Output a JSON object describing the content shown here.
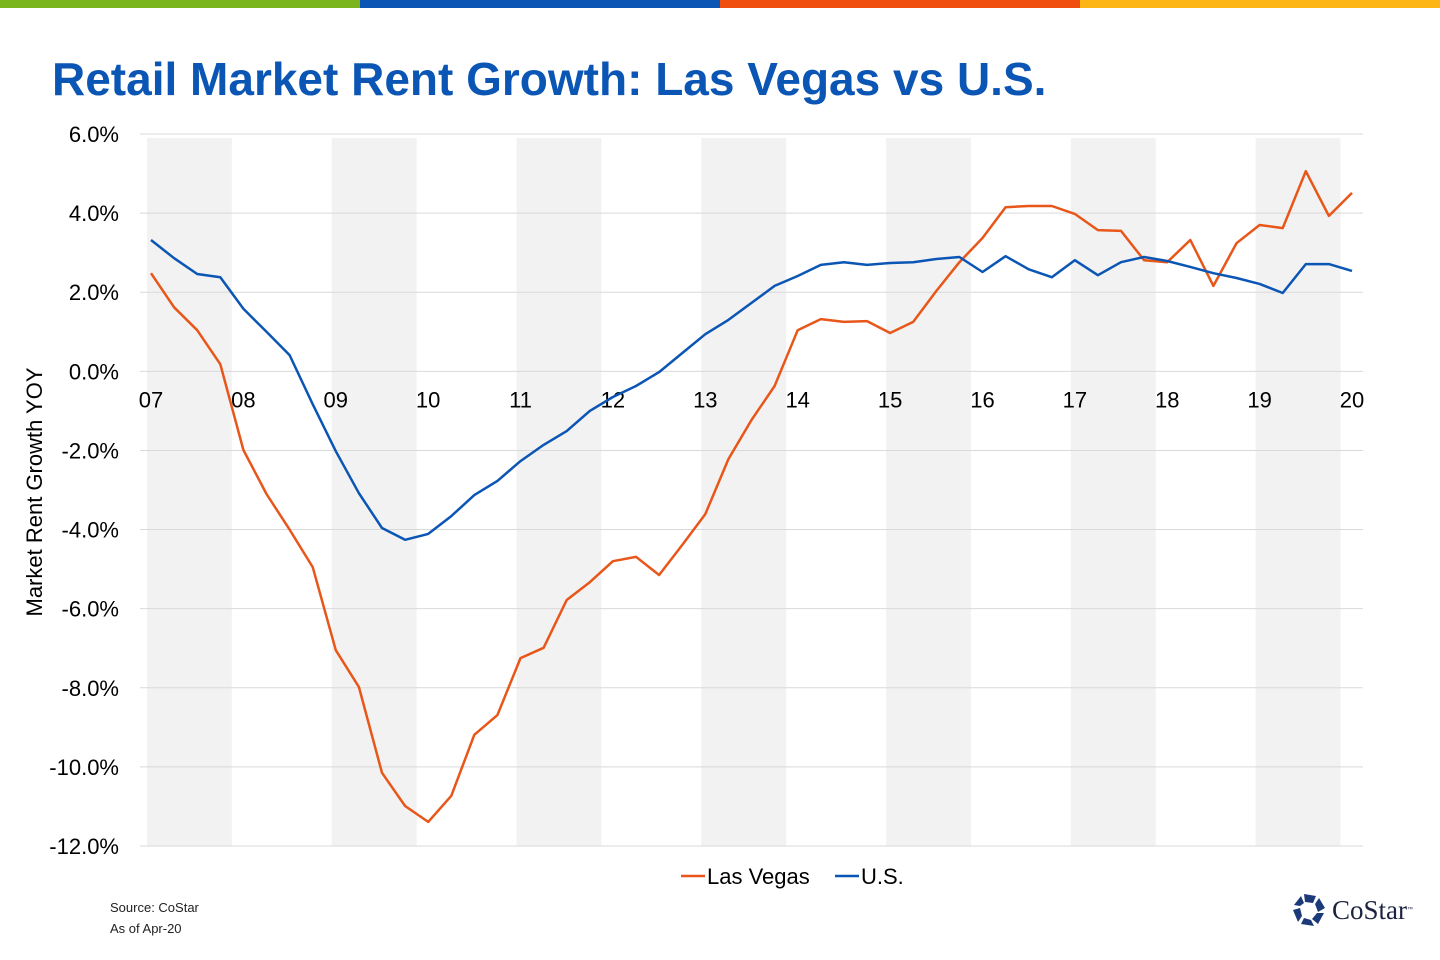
{
  "top_bar_colors": [
    "#7ab51d",
    "#0b56b4",
    "#f04e0f",
    "#fdb515"
  ],
  "chart_data": {
    "type": "line",
    "title": "Retail Market Rent Growth: Las Vegas vs U.S.",
    "xlabel": "",
    "ylabel": "Market Rent Growth YOY",
    "x_tick_labels": [
      "07",
      "08",
      "09",
      "10",
      "11",
      "12",
      "13",
      "14",
      "15",
      "16",
      "17",
      "18",
      "19",
      "20"
    ],
    "y_tick_labels": [
      "6.0%",
      "4.0%",
      "2.0%",
      "0.0%",
      "-2.0%",
      "-4.0%",
      "-6.0%",
      "-8.0%",
      "-10.0%",
      "-12.0%"
    ],
    "ylim": [
      -12,
      6
    ],
    "x_frequency": "quarterly",
    "grid": true,
    "shaded_years": [
      "07",
      "09",
      "11",
      "13",
      "15",
      "17",
      "19"
    ],
    "legend_position": "bottom",
    "series": [
      {
        "name": "Las Vegas",
        "color": "#e8561a",
        "values": [
          2.48,
          1.62,
          1.04,
          0.18,
          -1.99,
          -3.1,
          -4.0,
          -4.95,
          -7.05,
          -7.98,
          -10.15,
          -10.99,
          -11.39,
          -10.73,
          -9.19,
          -8.69,
          -7.25,
          -6.99,
          -5.78,
          -5.33,
          -4.8,
          -4.69,
          -5.15,
          -4.39,
          -3.61,
          -2.22,
          -1.23,
          -0.37,
          1.04,
          1.32,
          1.25,
          1.27,
          0.97,
          1.25,
          2.03,
          2.76,
          3.37,
          4.15,
          4.18,
          4.18,
          3.98,
          3.57,
          3.55,
          2.81,
          2.76,
          3.32,
          2.16,
          3.24,
          3.7,
          3.62,
          5.06,
          3.93,
          4.51
        ]
      },
      {
        "name": "U.S.",
        "color": "#0b56b4",
        "values": [
          3.32,
          2.86,
          2.46,
          2.38,
          1.58,
          1.0,
          0.41,
          -0.83,
          -2.02,
          -3.08,
          -3.96,
          -4.26,
          -4.11,
          -3.66,
          -3.13,
          -2.77,
          -2.27,
          -1.86,
          -1.51,
          -1.0,
          -0.65,
          -0.37,
          -0.02,
          0.46,
          0.94,
          1.3,
          1.73,
          2.16,
          2.41,
          2.69,
          2.76,
          2.69,
          2.74,
          2.76,
          2.84,
          2.89,
          2.51,
          2.91,
          2.58,
          2.38,
          2.81,
          2.43,
          2.76,
          2.89,
          2.79,
          2.64,
          2.48,
          2.36,
          2.21,
          1.98,
          2.71,
          2.71,
          2.54
        ]
      }
    ]
  },
  "footer": {
    "source": "Source: CoStar",
    "as_of": "As of Apr-20"
  },
  "logo": {
    "text": "CoStar",
    "tm": "™"
  }
}
